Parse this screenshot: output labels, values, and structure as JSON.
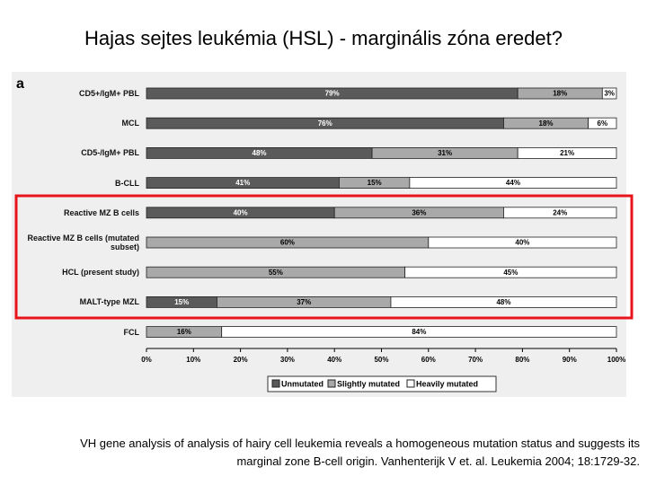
{
  "header": {
    "title": "Hajas sejtes leukémia (HSL)  - marginális zóna eredet?"
  },
  "chart_data": {
    "type": "stacked-barh",
    "panel_label": "a",
    "categories": [
      "CD5+/IgM+ PBL",
      "MCL",
      "CD5-/IgM+ PBL",
      "B-CLL",
      "Reactive MZ B cells",
      "Reactive MZ B cells (mutated subset)",
      "HCL (present study)",
      "MALT-type MZL",
      "FCL"
    ],
    "series": [
      {
        "name": "Unmutated",
        "color": "#5a5a5a",
        "text_color": "#ffffff",
        "values": [
          79,
          76,
          48,
          41,
          40,
          0,
          0,
          15,
          0
        ],
        "value_labels": [
          "79%",
          "76%",
          "48%",
          "41%",
          "40%",
          null,
          null,
          "15%",
          null
        ]
      },
      {
        "name": "Slightly mutated",
        "color": "#a9a9a9",
        "text_color": "#000000",
        "values": [
          18,
          18,
          31,
          15,
          36,
          60,
          55,
          37,
          16
        ],
        "value_labels": [
          "18%",
          "18%",
          "31%",
          "15%",
          "36%",
          "60%",
          "55%",
          "37%",
          "16%"
        ]
      },
      {
        "name": "Heavily mutated",
        "color": "#ffffff",
        "text_color": "#000000",
        "values": [
          3,
          6,
          21,
          44,
          24,
          40,
          45,
          48,
          84
        ],
        "value_labels": [
          "3%",
          "6%",
          "21%",
          "44%",
          "24%",
          "40%",
          "45%",
          "48%",
          "84%"
        ]
      }
    ],
    "xlim": [
      0,
      100
    ],
    "xticks": [
      {
        "value": 0,
        "label": "0%"
      },
      {
        "value": 10,
        "label": "10%"
      },
      {
        "value": 20,
        "label": "20%"
      },
      {
        "value": 30,
        "label": "30%"
      },
      {
        "value": 40,
        "label": "40%"
      },
      {
        "value": 50,
        "label": "50%"
      },
      {
        "value": 60,
        "label": "60%"
      },
      {
        "value": 70,
        "label": "70%"
      },
      {
        "value": 80,
        "label": "80%"
      },
      {
        "value": 90,
        "label": "90%"
      },
      {
        "value": 100,
        "label": "100%"
      }
    ]
  },
  "caption": {
    "lines": [
      "VH gene analysis of analysis of hairy cell leukemia reveals a homogeneous mutation status and suggests its",
      "marginal zone B-cell origin. Vanhenterijk V et. al. Leukemia 2004; 18:1729-32."
    ]
  }
}
